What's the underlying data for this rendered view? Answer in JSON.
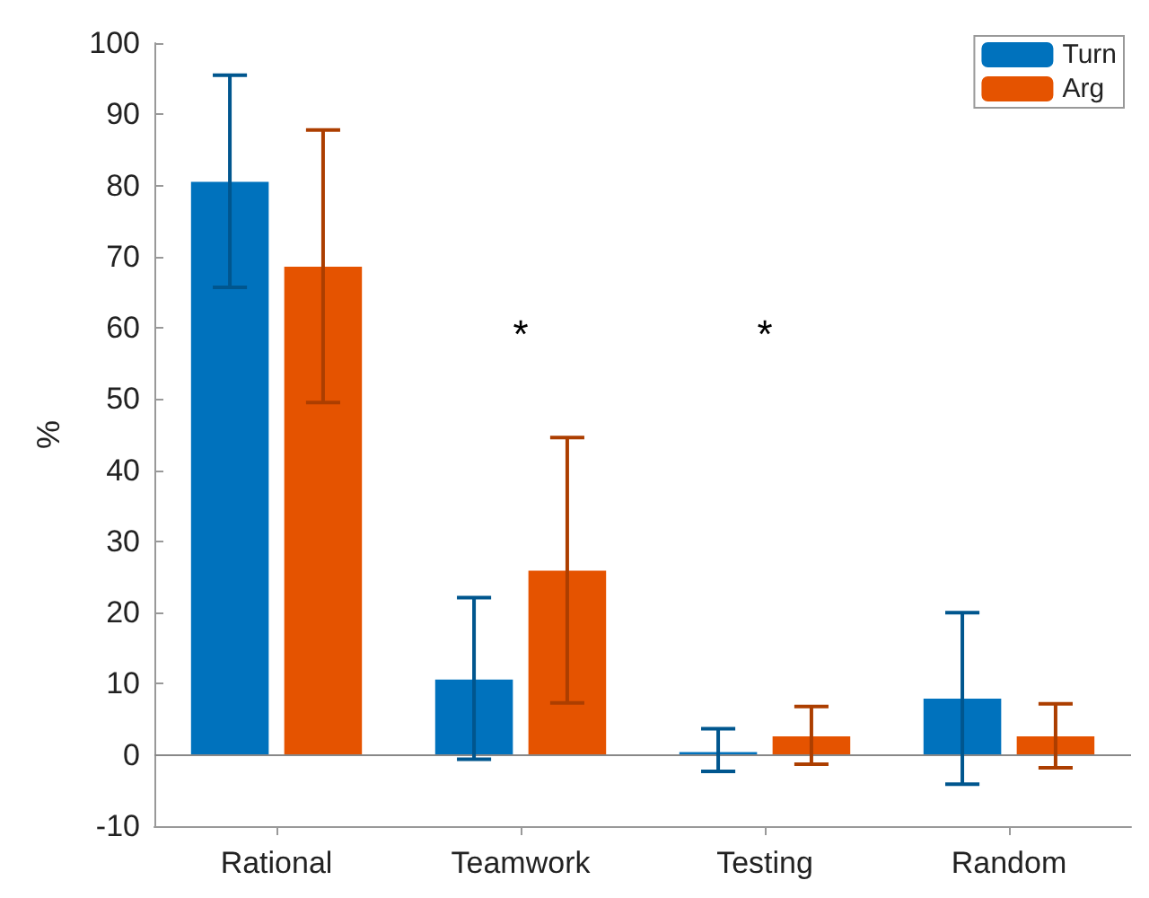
{
  "chart_data": {
    "type": "bar",
    "ylabel": "%",
    "categories": [
      "Rational",
      "Teamwork",
      "Testing",
      "Random"
    ],
    "series": [
      {
        "name": "Turn",
        "color": "#0072bd",
        "values": [
          80.5,
          10.6,
          0.4,
          7.9
        ],
        "errors": [
          [
            65.7,
            95.5
          ],
          [
            -0.6,
            22.1
          ],
          [
            -2.3,
            3.7
          ],
          [
            -4.1,
            20.0
          ]
        ]
      },
      {
        "name": "Arg",
        "color": "#e55300",
        "values": [
          68.6,
          25.9,
          2.6,
          2.6
        ],
        "errors": [
          [
            49.5,
            87.8
          ],
          [
            7.3,
            44.6
          ],
          [
            -1.3,
            6.8
          ],
          [
            -1.8,
            7.2
          ]
        ]
      }
    ],
    "ylim": [
      -10,
      100
    ],
    "yticks": [
      -10,
      0,
      10,
      20,
      30,
      40,
      50,
      60,
      70,
      80,
      90,
      100
    ],
    "ref_lines": [
      {
        "axis": "y",
        "value": 0,
        "color": "#888888"
      }
    ],
    "annotations": [
      "*",
      "*"
    ],
    "grid": false,
    "legend": "top right"
  }
}
